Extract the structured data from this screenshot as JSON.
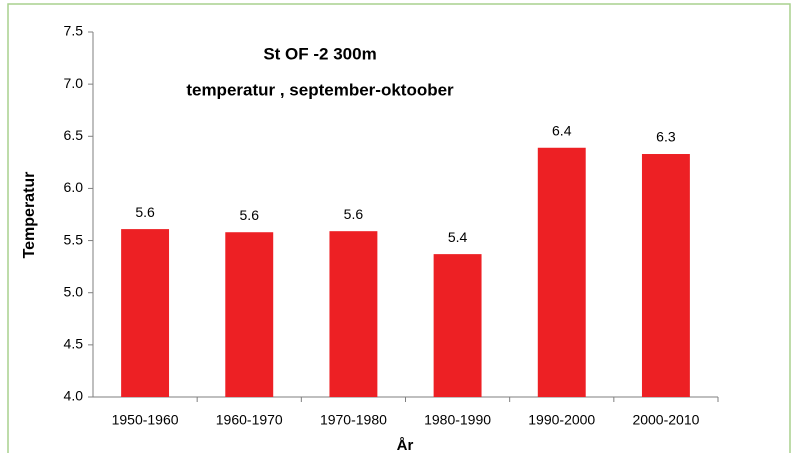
{
  "chart_data": {
    "type": "bar",
    "title": "St OF -2  300m",
    "subtitle": "temperatur , september-oktoober",
    "ylabel": "Temperatur",
    "xlabel": "År",
    "categories": [
      "1950-1960",
      "1960-1970",
      "1970-1980",
      "1980-1990",
      "1990-2000",
      "2000-2010"
    ],
    "values": [
      5.61,
      5.58,
      5.59,
      5.37,
      6.39,
      6.33
    ],
    "value_labels": [
      "5.6",
      "5.6",
      "5.6",
      "5.4",
      "6.4",
      "6.3"
    ],
    "color": "#ed2024",
    "ylim": [
      4.0,
      7.5
    ],
    "yticks": [
      {
        "value": 4.0,
        "label": "4.0"
      },
      4.5,
      {
        "value": 5.0,
        "label": "5.0"
      },
      5.5,
      {
        "value": 6.0,
        "label": "6.0"
      },
      6.5,
      {
        "value": 7.0,
        "label": "7.0"
      },
      7.5
    ],
    "grid": false
  }
}
